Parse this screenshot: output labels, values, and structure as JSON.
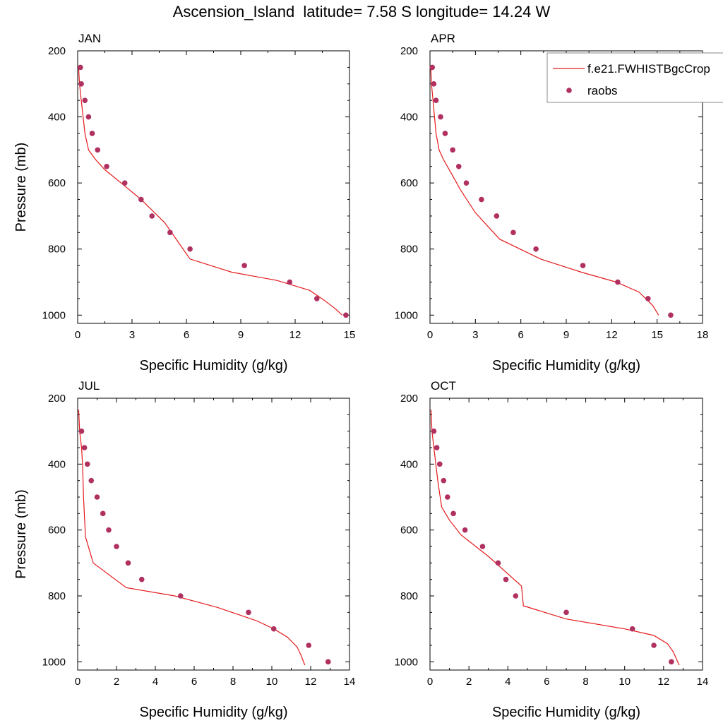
{
  "title": "Ascension_Island  latitude= 7.58 S longitude= 14.24 W",
  "colors": {
    "model": "#e41a1c",
    "obs": "#b03060",
    "axis": "#000000",
    "legend_border": "#888888"
  },
  "legend": {
    "placement": "top-right of APR panel",
    "entries": [
      {
        "label": "f.e21.FWHISTBgcCrop",
        "style": "line",
        "color": "#e41a1c"
      },
      {
        "label": "raobs",
        "style": "marker",
        "color": "#b03060"
      }
    ]
  },
  "chart_data": [
    {
      "type": "line",
      "panel": "JAN",
      "title": "JAN",
      "xlabel": "Specific Humidity (g/kg)",
      "ylabel": "Pressure (mb)",
      "xlim": [
        0,
        15
      ],
      "xticks": [
        0,
        3,
        6,
        9,
        12,
        15
      ],
      "ylim": [
        200,
        1025
      ],
      "yticks": [
        200,
        400,
        600,
        800,
        1000
      ],
      "y_inverted": true,
      "series": [
        {
          "style": "line",
          "x": [
            0.05,
            0.1,
            0.2,
            0.3,
            0.4,
            0.6,
            1.0,
            1.5,
            2.4,
            3.5,
            4.8,
            6.2,
            8.5,
            11.0,
            12.8,
            13.6,
            14.2,
            14.6
          ],
          "y": [
            250,
            300,
            350,
            400,
            450,
            500,
            530,
            560,
            600,
            650,
            720,
            830,
            870,
            895,
            925,
            955,
            980,
            1000
          ]
        },
        {
          "style": "marker",
          "x": [
            0.15,
            0.2,
            0.4,
            0.6,
            0.8,
            1.1,
            1.6,
            2.6,
            3.5,
            4.1,
            5.1,
            6.2,
            9.2,
            11.7,
            13.2,
            14.8
          ],
          "y": [
            250,
            300,
            350,
            400,
            450,
            500,
            550,
            600,
            650,
            700,
            750,
            800,
            850,
            900,
            950,
            1000
          ]
        }
      ]
    },
    {
      "type": "line",
      "panel": "APR",
      "title": "APR",
      "xlabel": "Specific Humidity (g/kg)",
      "ylabel": "",
      "xlim": [
        0,
        18
      ],
      "xticks": [
        0,
        3,
        6,
        9,
        12,
        15,
        18
      ],
      "ylim": [
        200,
        1025
      ],
      "yticks": [
        200,
        400,
        600,
        800,
        1000
      ],
      "y_inverted": true,
      "series": [
        {
          "style": "line",
          "x": [
            0.05,
            0.1,
            0.2,
            0.3,
            0.4,
            0.6,
            0.9,
            1.4,
            2.0,
            3.0,
            4.6,
            7.3,
            10.0,
            12.3,
            13.8,
            14.7,
            15.1
          ],
          "y": [
            250,
            300,
            350,
            400,
            450,
            500,
            530,
            570,
            620,
            690,
            770,
            830,
            870,
            900,
            930,
            970,
            1000
          ]
        },
        {
          "style": "marker",
          "x": [
            0.15,
            0.25,
            0.4,
            0.7,
            1.0,
            1.5,
            1.9,
            2.4,
            3.4,
            4.4,
            5.5,
            7.0,
            10.1,
            12.4,
            14.4,
            15.9
          ],
          "y": [
            250,
            300,
            350,
            400,
            450,
            500,
            550,
            600,
            650,
            700,
            750,
            800,
            850,
            900,
            950,
            1000
          ]
        }
      ]
    },
    {
      "type": "line",
      "panel": "JUL",
      "title": "JUL",
      "xlabel": "Specific Humidity (g/kg)",
      "ylabel": "Pressure (mb)",
      "xlim": [
        0,
        14
      ],
      "xticks": [
        0,
        2,
        4,
        6,
        8,
        10,
        12,
        14
      ],
      "ylim": [
        200,
        1025
      ],
      "yticks": [
        200,
        400,
        600,
        800,
        1000
      ],
      "y_inverted": true,
      "series": [
        {
          "style": "line",
          "x": [
            0.05,
            0.1,
            0.2,
            0.25,
            0.3,
            0.4,
            0.8,
            2.5,
            5.0,
            7.2,
            9.2,
            10.1,
            10.8,
            11.3,
            11.5,
            11.7
          ],
          "y": [
            235,
            300,
            350,
            400,
            500,
            620,
            700,
            775,
            800,
            835,
            875,
            900,
            925,
            955,
            980,
            1010
          ]
        },
        {
          "style": "marker",
          "x": [
            0.2,
            0.35,
            0.5,
            0.7,
            1.0,
            1.3,
            1.6,
            2.0,
            2.6,
            3.3,
            5.3,
            8.8,
            10.1,
            11.9,
            12.9
          ],
          "y": [
            300,
            350,
            400,
            450,
            500,
            550,
            600,
            650,
            700,
            750,
            800,
            850,
            900,
            950,
            1000
          ]
        }
      ]
    },
    {
      "type": "line",
      "panel": "OCT",
      "title": "OCT",
      "xlabel": "Specific Humidity (g/kg)",
      "ylabel": "",
      "xlim": [
        0,
        14
      ],
      "xticks": [
        0,
        2,
        4,
        6,
        8,
        10,
        12,
        14
      ],
      "ylim": [
        200,
        1025
      ],
      "yticks": [
        200,
        400,
        600,
        800,
        1000
      ],
      "y_inverted": true,
      "series": [
        {
          "style": "line",
          "x": [
            0.05,
            0.1,
            0.2,
            0.3,
            0.4,
            0.6,
            1.0,
            1.6,
            3.0,
            4.7,
            4.8,
            7.0,
            10.0,
            11.5,
            12.2,
            12.5,
            12.8
          ],
          "y": [
            235,
            300,
            350,
            400,
            450,
            530,
            570,
            615,
            680,
            770,
            830,
            870,
            900,
            920,
            945,
            970,
            1010
          ]
        },
        {
          "style": "marker",
          "x": [
            0.2,
            0.35,
            0.5,
            0.7,
            0.9,
            1.2,
            1.8,
            2.7,
            3.5,
            3.9,
            4.4,
            7.0,
            10.4,
            11.5,
            12.4
          ],
          "y": [
            300,
            350,
            400,
            450,
            500,
            550,
            600,
            650,
            700,
            750,
            800,
            850,
            900,
            950,
            1000
          ]
        }
      ]
    }
  ]
}
